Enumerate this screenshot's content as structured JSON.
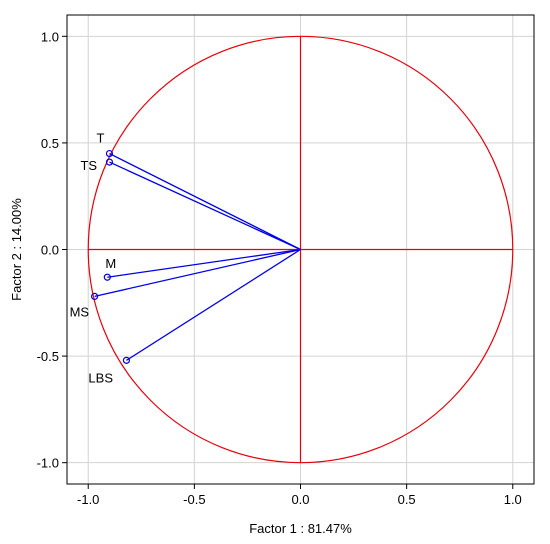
{
  "chart_data": {
    "type": "scatter",
    "xlabel": "Factor 1 : 81.47%",
    "ylabel": "Factor 2 : 14.00%",
    "xlim": [
      -1.1,
      1.1
    ],
    "ylim": [
      -1.1,
      1.1
    ],
    "x_ticks": [
      -1.0,
      -0.5,
      0.0,
      0.5,
      1.0
    ],
    "x_tick_labels": [
      "-1.0",
      "-0.5",
      "0.0",
      "0.5",
      "1.0"
    ],
    "y_ticks": [
      1.0,
      0.5,
      0.0,
      -0.5,
      -1.0
    ],
    "y_tick_labels": [
      "1.0",
      "0.5",
      "0.0",
      "-0.5",
      "-1.0"
    ],
    "grid": true,
    "unit_circle": true,
    "points": [
      {
        "label": "T",
        "x": -0.9,
        "y": 0.45
      },
      {
        "label": "TS",
        "x": -0.9,
        "y": 0.41
      },
      {
        "label": "M",
        "x": -0.91,
        "y": -0.13
      },
      {
        "label": "MS",
        "x": -0.97,
        "y": -0.22
      },
      {
        "label": "LBS",
        "x": -0.82,
        "y": -0.52
      }
    ],
    "colors": {
      "circle": "#e8000b",
      "crosshair": "#e8000b",
      "vectors": "#0000e6",
      "markers": "#0000e6",
      "grid": "#d3d3d3",
      "frame": "#000000"
    }
  }
}
